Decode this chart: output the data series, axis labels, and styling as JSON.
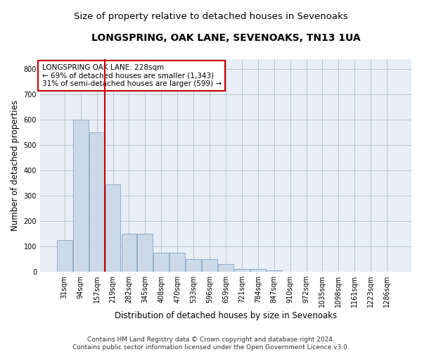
{
  "title": "LONGSPRING, OAK LANE, SEVENOAKS, TN13 1UA",
  "subtitle": "Size of property relative to detached houses in Sevenoaks",
  "xlabel": "Distribution of detached houses by size in Sevenoaks",
  "ylabel": "Number of detached properties",
  "bar_color": "#ccd9e8",
  "bar_edge_color": "#7799bb",
  "vline_color": "#cc0000",
  "vline_x_index": 3,
  "annotation_text": "LONGSPRING OAK LANE: 228sqm\n← 69% of detached houses are smaller (1,343)\n31% of semi-detached houses are larger (599) →",
  "categories": [
    "31sqm",
    "94sqm",
    "157sqm",
    "219sqm",
    "282sqm",
    "345sqm",
    "408sqm",
    "470sqm",
    "533sqm",
    "596sqm",
    "659sqm",
    "721sqm",
    "784sqm",
    "847sqm",
    "910sqm",
    "972sqm",
    "1035sqm",
    "1098sqm",
    "1161sqm",
    "1223sqm",
    "1286sqm"
  ],
  "values": [
    125,
    600,
    550,
    345,
    150,
    150,
    75,
    75,
    50,
    50,
    30,
    10,
    10,
    5,
    0,
    0,
    0,
    0,
    0,
    0,
    0
  ],
  "ylim": [
    0,
    840
  ],
  "yticks": [
    0,
    100,
    200,
    300,
    400,
    500,
    600,
    700,
    800
  ],
  "background_color": "#e8eef5",
  "footer_text": "Contains HM Land Registry data © Crown copyright and database right 2024.\nContains public sector information licensed under the Open Government Licence v3.0.",
  "annotation_box_color": "#ffffff",
  "annotation_box_edge": "#cc0000",
  "grid_color": "#b0bfcc",
  "title_fontsize": 10,
  "subtitle_fontsize": 9.5,
  "axis_label_fontsize": 8.5,
  "tick_fontsize": 7,
  "annotation_fontsize": 7.5,
  "footer_fontsize": 6.5
}
